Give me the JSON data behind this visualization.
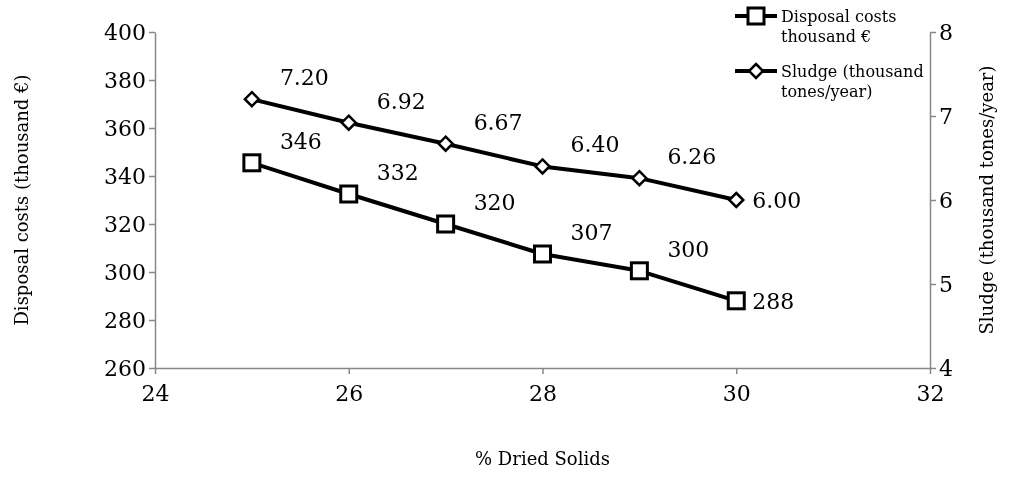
{
  "chart_data": {
    "type": "line",
    "xlabel": "% Dried Solids",
    "ylabel": "Disposal costs (thousand €)",
    "y2label": "Sludge (thousand tones/year)",
    "x": [
      25,
      26,
      27,
      28,
      29,
      30
    ],
    "xlim": [
      24,
      32
    ],
    "xticks": [
      24,
      26,
      28,
      30,
      32
    ],
    "ylim": [
      260,
      400
    ],
    "yticks": [
      260,
      280,
      300,
      320,
      340,
      360,
      380,
      400
    ],
    "y2lim": [
      4,
      8
    ],
    "y2ticks": [
      4,
      5,
      6,
      7,
      8
    ],
    "grid": false,
    "legend": "top right",
    "series": [
      {
        "name": "Disposal costs thousand €",
        "color": "#000000",
        "marker": "square",
        "values": [
          345.5,
          332.5,
          320,
          307.5,
          300.5,
          288
        ],
        "value_labels": [
          "346",
          "332",
          "320",
          "307",
          "300",
          "288"
        ]
      },
      {
        "name": "Sludge (thousand tones/year)",
        "color": "#000000",
        "marker": "diamond",
        "axis": "y2",
        "values": [
          7.2,
          6.92,
          6.67,
          6.4,
          6.26,
          6.0
        ],
        "value_labels": [
          "7.20",
          "6.92",
          "6.67",
          "6.40",
          "6.26",
          "6.00"
        ]
      }
    ]
  }
}
